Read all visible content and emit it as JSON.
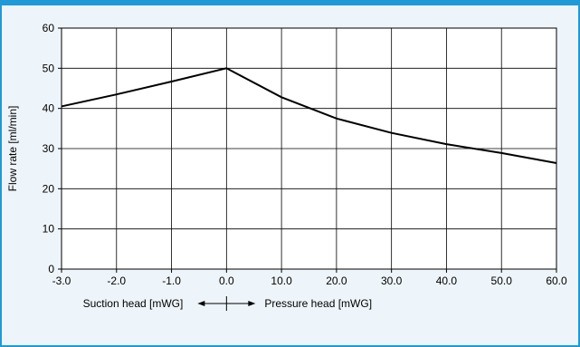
{
  "colors": {
    "frame": "#1f9ad6",
    "background": "#eef5fa",
    "plot": "#ffffff",
    "line": "#000000"
  },
  "chart_data": {
    "type": "line",
    "xlim": [
      -3,
      6
    ],
    "ylim": [
      0,
      60
    ],
    "x_ticks": [
      -3,
      -2,
      -1,
      0,
      1,
      2,
      3,
      4,
      5,
      6
    ],
    "x_tick_labels": [
      "-3.0",
      "-2.0",
      "-1.0",
      "0.0",
      "10.0",
      "20.0",
      "30.0",
      "40.0",
      "50.0",
      "60.0"
    ],
    "y_ticks": [
      0,
      10,
      20,
      30,
      40,
      50,
      60
    ],
    "y_tick_labels": [
      "0",
      "10",
      "20",
      "30",
      "40",
      "50",
      "60"
    ],
    "ylabel": "Flow rate [ml/min]",
    "suction_label": "Suction head [mWG]",
    "pressure_label": "Pressure head [mWG]",
    "grid": true,
    "series": [
      {
        "x": [
          -3,
          -2,
          -1,
          0,
          1,
          2,
          3,
          4,
          5,
          6
        ],
        "y": [
          40.5,
          43.5,
          46.7,
          50,
          42.8,
          37.5,
          33.9,
          31.1,
          28.9,
          26.4
        ]
      }
    ]
  }
}
